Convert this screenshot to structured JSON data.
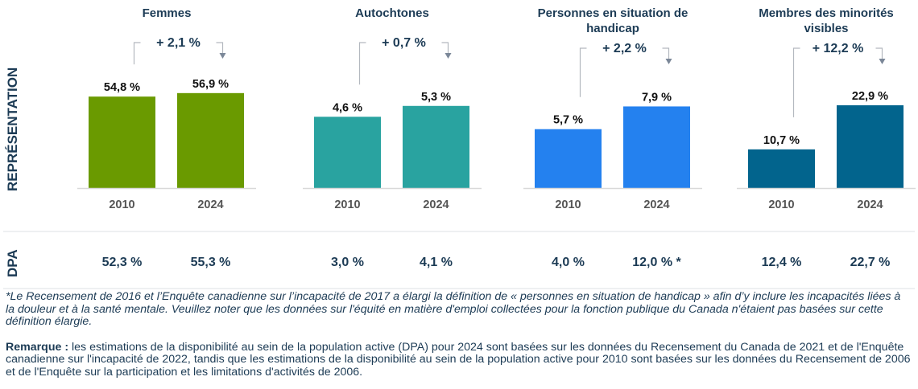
{
  "colors": {
    "title": "#1c3b55",
    "tick": "#555555",
    "value": "#111111",
    "axis": "#d9d9d9",
    "bracket": "#b3b8bf",
    "arrow": "#7b8798",
    "divider": "#e3e8ea"
  },
  "row_labels": {
    "representation": "REPRÉSENTATION",
    "dpa": "DPA"
  },
  "chart_data": {
    "type": "bar",
    "categories": [
      "2010",
      "2024"
    ],
    "ylabel": "REPRÉSENTATION",
    "panels": [
      {
        "title_lines": [
          "Femmes"
        ],
        "color": "#6a9a00",
        "values": [
          54.8,
          56.9
        ],
        "labels": [
          "54,8 %",
          "56,9 %"
        ],
        "change": "+ 2,1 %",
        "dpa": [
          "52,3 %",
          "55,3 %"
        ],
        "ylim": [
          0,
          65
        ]
      },
      {
        "title_lines": [
          "Autochtones"
        ],
        "color": "#29a3a0",
        "values": [
          4.6,
          5.3
        ],
        "labels": [
          "4,6 %",
          "5,3 %"
        ],
        "change": "+ 0,7 %",
        "dpa": [
          "3,0 %",
          "4,1 %"
        ],
        "ylim": [
          0,
          7
        ]
      },
      {
        "title_lines": [
          "Personnes en situation de",
          "handicap"
        ],
        "color": "#2481ef",
        "values": [
          5.7,
          7.9
        ],
        "labels": [
          "5,7 %",
          "7,9 %"
        ],
        "change": "+ 2,2 %",
        "dpa": [
          "4,0 %",
          "12,0 % *"
        ],
        "ylim": [
          0,
          10.5
        ]
      },
      {
        "title_lines": [
          "Membres des minorités",
          "visibles"
        ],
        "color": "#02648d",
        "values": [
          10.7,
          22.9
        ],
        "labels": [
          "10,7 %",
          "22,9 %"
        ],
        "change": "+ 12,2 %",
        "dpa": [
          "12,4 %",
          "22,7 %"
        ],
        "ylim": [
          0,
          30
        ]
      }
    ]
  },
  "notes": {
    "footnote": "*Le Recensement de 2016 et l’Enquête canadienne sur l’incapacité de 2017 a élargi la définition de « personnes en situation de handicap » afin d’y inclure les incapacités liées à la douleur et à la santé mentale. Veuillez noter que les données sur l'équité en matière d'emploi collectées pour la fonction publique du Canada n'étaient pas basées sur cette définition élargie.",
    "remark_label": "Remarque :",
    "remark_text": " les estimations de la disponibilité au sein de la population active (DPA) pour 2024 sont basées sur les données du Recensement du Canada de 2021 et de l'Enquête canadienne sur l'incapacité de 2022, tandis que les estimations de la disponibilité au sein de la population active pour 2010 sont basées sur les données du Recensement de 2006 et de l'Enquête sur la participation et les limitations d'activités de 2006."
  }
}
